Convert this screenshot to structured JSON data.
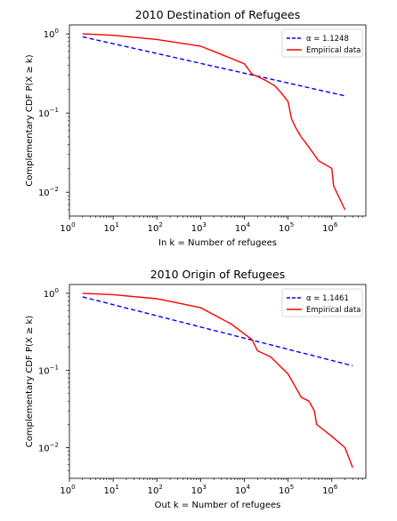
{
  "chart_data": [
    {
      "type": "line",
      "title": "2010 Destination of Refugees",
      "xlabel": "In k = Number of refugees",
      "ylabel": "Complementary CDF P(X ≥ k)",
      "xscale": "log",
      "yscale": "log",
      "xlim": [
        1,
        6000000
      ],
      "ylim": [
        0.005,
        1.3
      ],
      "x_ticks": [
        1,
        10,
        100,
        1000,
        10000,
        100000,
        1000000
      ],
      "x_tick_labels": [
        {
          "base": "10",
          "exp": "0"
        },
        {
          "base": "10",
          "exp": "1"
        },
        {
          "base": "10",
          "exp": "2"
        },
        {
          "base": "10",
          "exp": "3"
        },
        {
          "base": "10",
          "exp": "4"
        },
        {
          "base": "10",
          "exp": "5"
        },
        {
          "base": "10",
          "exp": "6"
        }
      ],
      "y_ticks": [
        0.01,
        0.1,
        1
      ],
      "y_tick_labels": [
        {
          "base": "10",
          "exp": "−2"
        },
        {
          "base": "10",
          "exp": "−1"
        },
        {
          "base": "10",
          "exp": "0"
        }
      ],
      "legend_position": "top-right",
      "series": [
        {
          "name": "α = 1.1248",
          "style": "dashed",
          "color": "#0000ff",
          "x": [
            2,
            2000000
          ],
          "y": [
            0.92,
            0.165
          ]
        },
        {
          "name": "Empirical data",
          "style": "solid",
          "color": "#ff0000",
          "x": [
            2,
            10,
            100,
            1000,
            3000,
            10000,
            15000,
            20000,
            30000,
            50000,
            70000,
            100000,
            120000,
            150000,
            200000,
            300000,
            500000,
            1000000,
            1100000,
            2000000
          ],
          "y": [
            1.0,
            0.96,
            0.85,
            0.7,
            0.55,
            0.42,
            0.31,
            0.29,
            0.26,
            0.22,
            0.18,
            0.14,
            0.085,
            0.065,
            0.05,
            0.037,
            0.025,
            0.02,
            0.012,
            0.006
          ]
        }
      ]
    },
    {
      "type": "line",
      "title": "2010 Origin of Refugees",
      "xlabel": "Out k = Number of refugees",
      "ylabel": "Complementary CDF P(X ≥ k)",
      "xscale": "log",
      "yscale": "log",
      "xlim": [
        1,
        6000000
      ],
      "ylim": [
        0.004,
        1.3
      ],
      "x_ticks": [
        1,
        10,
        100,
        1000,
        10000,
        100000,
        1000000
      ],
      "x_tick_labels": [
        {
          "base": "10",
          "exp": "0"
        },
        {
          "base": "10",
          "exp": "1"
        },
        {
          "base": "10",
          "exp": "2"
        },
        {
          "base": "10",
          "exp": "3"
        },
        {
          "base": "10",
          "exp": "4"
        },
        {
          "base": "10",
          "exp": "5"
        },
        {
          "base": "10",
          "exp": "6"
        }
      ],
      "y_ticks": [
        0.01,
        0.1,
        1
      ],
      "y_tick_labels": [
        {
          "base": "10",
          "exp": "−2"
        },
        {
          "base": "10",
          "exp": "−1"
        },
        {
          "base": "10",
          "exp": "0"
        }
      ],
      "legend_position": "top-right",
      "series": [
        {
          "name": "α = 1.1461",
          "style": "dashed",
          "color": "#0000ff",
          "x": [
            2,
            3000000
          ],
          "y": [
            0.9,
            0.115
          ]
        },
        {
          "name": "Empirical data",
          "style": "solid",
          "color": "#ff0000",
          "x": [
            2,
            10,
            100,
            1000,
            5000,
            15000,
            20000,
            40000,
            100000,
            150000,
            200000,
            300000,
            400000,
            450000,
            1000000,
            2000000,
            3000000
          ],
          "y": [
            1.0,
            0.96,
            0.85,
            0.65,
            0.4,
            0.25,
            0.18,
            0.15,
            0.09,
            0.06,
            0.045,
            0.04,
            0.03,
            0.02,
            0.014,
            0.01,
            0.0055
          ]
        }
      ]
    }
  ]
}
